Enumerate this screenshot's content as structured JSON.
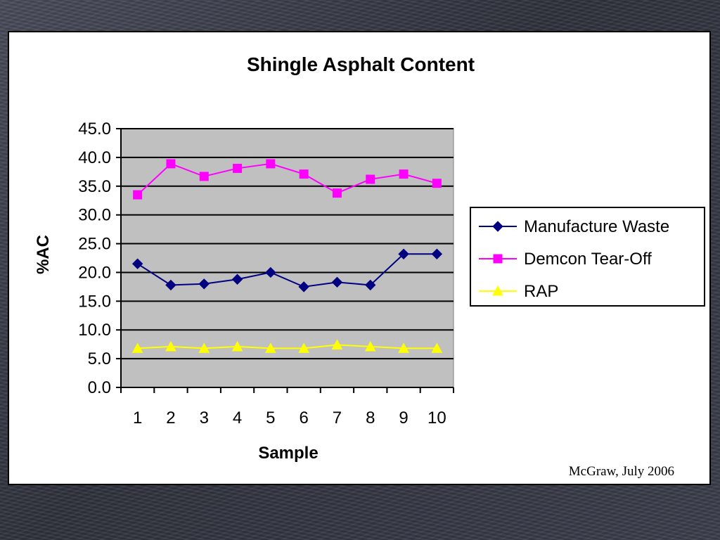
{
  "colors": {
    "plot_background": "#c0c0c0",
    "gridline": "#000000",
    "manufacture_waste": "#000080",
    "demcon_tear_off": "#ff00ff",
    "rap": "#ffff00"
  },
  "chart_data": {
    "type": "line",
    "title": "Shingle Asphalt Content",
    "xlabel": "Sample",
    "ylabel": "%AC",
    "categories": [
      "1",
      "2",
      "3",
      "4",
      "5",
      "6",
      "7",
      "8",
      "9",
      "10"
    ],
    "ylim": [
      0,
      45
    ],
    "ytick_labels": [
      "0.0",
      "5.0",
      "10.0",
      "15.0",
      "20.0",
      "25.0",
      "30.0",
      "35.0",
      "40.0",
      "45.0"
    ],
    "grid": true,
    "legend_position": "right",
    "series": [
      {
        "name": "Manufacture Waste",
        "marker": "diamond",
        "color": "#000080",
        "values": [
          21.5,
          17.8,
          18.0,
          18.8,
          20.0,
          17.5,
          18.3,
          17.8,
          23.2,
          23.2
        ]
      },
      {
        "name": "Demcon Tear-Off",
        "marker": "square",
        "color": "#ff00ff",
        "values": [
          33.5,
          38.9,
          36.7,
          38.1,
          38.9,
          37.1,
          33.8,
          36.2,
          37.1,
          35.5
        ]
      },
      {
        "name": "RAP",
        "marker": "triangle",
        "color": "#ffff00",
        "values": [
          6.8,
          7.1,
          6.8,
          7.1,
          6.8,
          6.8,
          7.4,
          7.1,
          6.8,
          6.8
        ]
      }
    ]
  },
  "credit": "McGraw, July 2006"
}
